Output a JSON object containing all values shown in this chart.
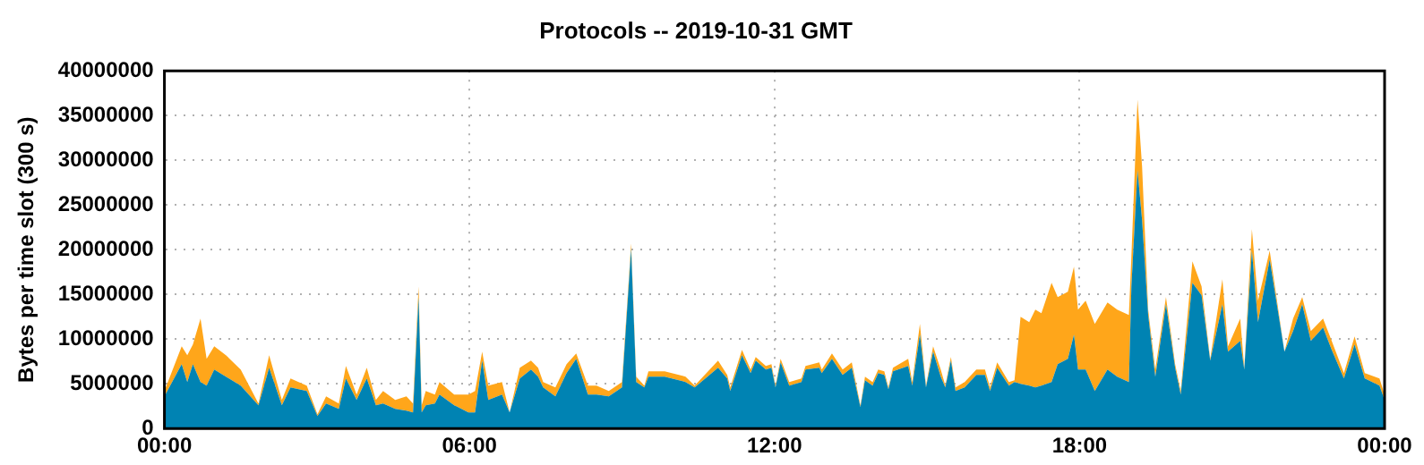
{
  "chart_data": {
    "type": "area",
    "title": "Protocols -- 2019-10-31 GMT",
    "ylabel": "Bytes per time slot (300 s)",
    "stacked": true,
    "grid": true,
    "x": [
      0,
      0.34,
      0.45,
      0.56,
      0.71,
      0.83,
      0.98,
      1.21,
      1.5,
      1.85,
      2.06,
      2.31,
      2.48,
      2.8,
      3.01,
      3.18,
      3.43,
      3.57,
      3.78,
      3.98,
      4.16,
      4.3,
      4.54,
      4.76,
      4.89,
      5.0,
      5.06,
      5.14,
      5.32,
      5.41,
      5.7,
      5.98,
      6.11,
      6.25,
      6.37,
      6.64,
      6.79,
      6.99,
      7.21,
      7.35,
      7.45,
      7.69,
      7.91,
      8.1,
      8.33,
      8.5,
      8.74,
      9.0,
      9.18,
      9.28,
      9.44,
      9.52,
      9.84,
      10.25,
      10.43,
      10.89,
      11.07,
      11.13,
      11.36,
      11.53,
      11.63,
      11.83,
      11.94,
      12.02,
      12.12,
      12.29,
      12.53,
      12.61,
      12.88,
      12.93,
      13.13,
      13.34,
      13.52,
      13.69,
      13.78,
      13.93,
      14.04,
      14.16,
      14.24,
      14.33,
      14.63,
      14.71,
      14.86,
      14.98,
      15.12,
      15.27,
      15.36,
      15.47,
      15.56,
      15.74,
      15.97,
      16.14,
      16.24,
      16.38,
      16.61,
      16.72,
      16.84,
      17.01,
      17.13,
      17.25,
      17.45,
      17.57,
      17.77,
      17.89,
      17.97,
      18.12,
      18.3,
      18.55,
      18.74,
      18.97,
      19.02,
      19.14,
      19.23,
      19.35,
      19.49,
      19.7,
      19.88,
      19.99,
      20.22,
      20.4,
      20.57,
      20.81,
      20.92,
      21.16,
      21.24,
      21.39,
      21.51,
      21.74,
      22.03,
      22.2,
      22.38,
      22.55,
      22.79,
      22.96,
      23.2,
      23.41,
      23.61,
      23.9,
      24
    ],
    "series": [
      {
        "color": "#0083b3",
        "values": [
          3600000,
          7200000,
          5200000,
          7200000,
          5200000,
          4800000,
          6600000,
          5800000,
          4800000,
          2600000,
          6800000,
          2600000,
          4600000,
          4200000,
          1400000,
          2800000,
          2200000,
          5600000,
          3200000,
          5600000,
          2600000,
          2800000,
          2200000,
          2000000,
          1800000,
          14700000,
          1800000,
          2600000,
          2800000,
          3800000,
          2600000,
          1800000,
          1800000,
          7600000,
          3200000,
          3800000,
          1800000,
          5600000,
          6600000,
          5800000,
          4600000,
          3600000,
          6200000,
          7800000,
          3800000,
          3800000,
          3600000,
          4600000,
          20100000,
          5200000,
          4600000,
          5800000,
          5800000,
          5200000,
          4600000,
          6800000,
          5600000,
          4200000,
          8200000,
          6200000,
          7600000,
          6600000,
          6800000,
          4600000,
          7400000,
          4800000,
          5200000,
          6600000,
          6800000,
          6200000,
          7800000,
          6000000,
          6800000,
          2400000,
          5400000,
          4800000,
          6200000,
          6000000,
          4400000,
          6400000,
          7000000,
          4800000,
          10500000,
          4600000,
          8600000,
          5800000,
          4600000,
          7600000,
          4200000,
          4600000,
          6000000,
          6000000,
          4200000,
          6800000,
          4800000,
          5200000,
          5000000,
          4800000,
          4600000,
          4800000,
          5200000,
          7200000,
          7800000,
          10500000,
          6600000,
          6600000,
          4200000,
          6600000,
          5800000,
          5200000,
          15900000,
          28900000,
          23300000,
          12700000,
          5800000,
          13900000,
          6800000,
          3800000,
          16300000,
          14900000,
          7600000,
          13900000,
          8600000,
          9800000,
          6600000,
          19900000,
          11900000,
          18900000,
          8600000,
          10900000,
          13900000,
          9800000,
          11300000,
          8800000,
          5600000,
          9400000,
          5600000,
          4800000,
          3200000
        ]
      },
      {
        "color": "#ffa61a",
        "values": [
          600000,
          2000000,
          3000000,
          2200000,
          7100000,
          3000000,
          2600000,
          2400000,
          1800000,
          200000,
          1400000,
          600000,
          1000000,
          600000,
          200000,
          800000,
          600000,
          1400000,
          600000,
          1200000,
          600000,
          1400000,
          1000000,
          1600000,
          1000000,
          1200000,
          800000,
          1600000,
          1000000,
          1400000,
          1200000,
          2000000,
          2400000,
          1000000,
          1600000,
          1400000,
          0,
          1200000,
          1000000,
          1000000,
          600000,
          1000000,
          1000000,
          600000,
          1000000,
          1000000,
          600000,
          600000,
          600000,
          600000,
          200000,
          600000,
          600000,
          600000,
          200000,
          800000,
          400000,
          400000,
          600000,
          400000,
          400000,
          400000,
          400000,
          200000,
          400000,
          400000,
          400000,
          400000,
          600000,
          400000,
          600000,
          600000,
          600000,
          200000,
          400000,
          400000,
          400000,
          400000,
          200000,
          400000,
          800000,
          400000,
          1200000,
          200000,
          600000,
          800000,
          200000,
          400000,
          400000,
          600000,
          600000,
          600000,
          400000,
          600000,
          400000,
          200000,
          7500000,
          7100000,
          8700000,
          8100000,
          11100000,
          7500000,
          7500000,
          7600000,
          6700000,
          7700000,
          7500000,
          7500000,
          7500000,
          7500000,
          3400000,
          7900000,
          6000000,
          600000,
          800000,
          800000,
          400000,
          400000,
          2400000,
          1000000,
          200000,
          2800000,
          600000,
          2500000,
          200000,
          2400000,
          2400000,
          1000000,
          0,
          1400000,
          800000,
          1100000,
          1000000,
          1000000,
          600000,
          900000,
          600000,
          800000,
          600000
        ]
      }
    ],
    "xlim": [
      0,
      24
    ],
    "xticks": [
      {
        "value": 0,
        "label": "00:00"
      },
      {
        "value": 6,
        "label": "06:00"
      },
      {
        "value": 12,
        "label": "12:00"
      },
      {
        "value": 18,
        "label": "18:00"
      },
      {
        "value": 24,
        "label": "00:00"
      }
    ],
    "ylim": [
      0,
      40000000
    ],
    "yticks": [
      0,
      5000000,
      10000000,
      15000000,
      20000000,
      25000000,
      30000000,
      35000000,
      40000000
    ]
  }
}
